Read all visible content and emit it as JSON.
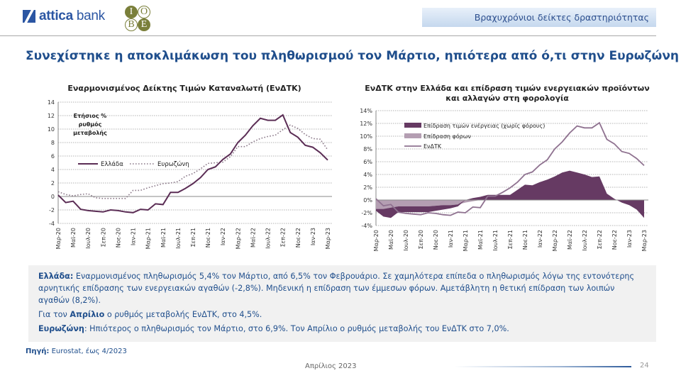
{
  "header": {
    "brand_bold": "attica",
    "brand_rest": " bank",
    "iobe_letters": [
      "I",
      "O",
      "B",
      "E"
    ],
    "section": "Βραχυχρόνιοι δείκτες δραστηριότητας"
  },
  "headline": "Συνεχίστηκε η αποκλιμάκωση του πληθωρισμού τον Μάρτιο, ηπιότερα από ό,τι στην Ευρωζώνη",
  "colors": {
    "greece": "#5b2d55",
    "eurozone": "#8c7a8a",
    "energy": "#663a63",
    "taxes": "#b49eb2",
    "hicp": "#8f7290",
    "text_blue": "#1f4e8c"
  },
  "chart_data": [
    {
      "type": "line",
      "title": "Εναρμονισμένος Δείκτης Τιμών Καταναλωτή (ΕνΔΤΚ)",
      "annotation": [
        "Ετήσιος %",
        "ρυθμός",
        "μεταβολής"
      ],
      "ylim": [
        -4,
        14
      ],
      "yticks": [
        "-4",
        "-2",
        "0",
        "2",
        "4",
        "6",
        "8",
        "10",
        "12",
        "14"
      ],
      "grid": true,
      "legend": "middle-left",
      "x_tick_labels": [
        "Μαρ-20",
        "Μαϊ-20",
        "Ιουλ-20",
        "Σεπ-20",
        "Νοε-20",
        "Ιαν-21",
        "Μαρ-21",
        "Μαϊ-21",
        "Ιουλ-21",
        "Σεπ-21",
        "Νοε-21",
        "Ιαν-22",
        "Μαρ-22",
        "Μαϊ-22",
        "Ιουλ-22",
        "Σεπ-22",
        "Νοε-22",
        "Ιαν-23",
        "Μαρ-23"
      ],
      "series": [
        {
          "name": "Ελλάδα",
          "style": "solid",
          "values": [
            0.2,
            -0.9,
            -0.7,
            -1.9,
            -2.1,
            -2.2,
            -2.3,
            -2.0,
            -2.1,
            -2.3,
            -2.4,
            -1.9,
            -2.0,
            -1.1,
            -1.2,
            0.6,
            0.6,
            1.2,
            1.9,
            2.8,
            4.0,
            4.4,
            5.5,
            6.3,
            8.0,
            9.1,
            10.5,
            11.6,
            11.3,
            11.3,
            12.1,
            9.5,
            8.8,
            7.6,
            7.3,
            6.5,
            5.4
          ]
        },
        {
          "name": "Ευρωζώνη",
          "style": "dotted",
          "values": [
            0.7,
            0.3,
            0.1,
            0.3,
            0.4,
            -0.2,
            -0.3,
            -0.3,
            -0.3,
            -0.3,
            0.9,
            0.9,
            1.3,
            1.6,
            1.9,
            2.0,
            2.2,
            3.0,
            3.4,
            4.1,
            4.9,
            5.0,
            5.1,
            5.9,
            7.4,
            7.4,
            8.1,
            8.6,
            8.9,
            9.1,
            9.9,
            10.6,
            10.1,
            9.2,
            8.6,
            8.5,
            6.9
          ]
        }
      ]
    },
    {
      "type": "area",
      "title": "ΕνΔΤΚ στην Ελλάδα και επίδραση τιμών ενεργειακών προϊόντων και αλλαγών στη φορολογία",
      "title_lines": [
        "ΕνΔΤΚ στην Ελλάδα και επίδραση τιμών ενεργειακών προϊόντων",
        "και αλλαγών στη φορολογία"
      ],
      "ylim": [
        -4,
        14
      ],
      "yticks": [
        "-4%",
        "-2%",
        "0%",
        "2%",
        "4%",
        "6%",
        "8%",
        "10%",
        "12%",
        "14%"
      ],
      "grid": true,
      "legend": "top-left",
      "x_tick_labels": [
        "Μαρ-20",
        "Μαϊ-20",
        "Ιουλ-20",
        "Σεπ-20",
        "Νοε-20",
        "Ιαν-21",
        "Μαρ-21",
        "Μαϊ-21",
        "Ιουλ-21",
        "Σεπ-21",
        "Νοε-21",
        "Ιαν-22",
        "Μαρ-22",
        "Μαϊ-22",
        "Ιουλ-22",
        "Σεπ-22",
        "Νοε-22",
        "Ιαν-23",
        "Μαρ-23"
      ],
      "series": [
        {
          "name": "Επίδραση τιμών ενέργειας (χωρίς φόρους)",
          "kind": "area",
          "values": [
            -0.3,
            -1.2,
            -1.6,
            -0.9,
            -0.9,
            -0.9,
            -0.9,
            -0.9,
            -0.8,
            -0.7,
            -0.5,
            -0.3,
            0.0,
            0.3,
            0.5,
            0.8,
            0.8,
            0.8,
            0.8,
            1.6,
            2.4,
            2.3,
            2.8,
            3.2,
            3.7,
            4.3,
            4.6,
            4.3,
            4.0,
            3.6,
            3.7,
            1.0,
            0.2,
            -0.4,
            -0.8,
            -1.5,
            -2.8
          ]
        },
        {
          "name": "Επίδραση φόρων",
          "kind": "area",
          "values": [
            -1.4,
            -1.4,
            -1.2,
            -1.0,
            -1.0,
            -1.0,
            -1.0,
            -1.0,
            -0.9,
            -0.8,
            -0.8,
            -0.7,
            -0.4,
            -0.2,
            0.0,
            0.0,
            0.0,
            0.0,
            0.0,
            0.0,
            0.0,
            0.0,
            0.0,
            0.0,
            0.0,
            0.0,
            0.0,
            0.0,
            0.0,
            0.0,
            0.0,
            0.0,
            0.0,
            0.0,
            0.0,
            0.0,
            0.0
          ]
        },
        {
          "name": "ΕνΔΤΚ",
          "kind": "line",
          "values": [
            0.2,
            -0.9,
            -0.7,
            -1.9,
            -2.1,
            -2.2,
            -2.3,
            -2.0,
            -2.1,
            -2.3,
            -2.4,
            -1.9,
            -2.0,
            -1.1,
            -1.2,
            0.6,
            0.6,
            1.2,
            1.9,
            2.8,
            4.0,
            4.4,
            5.5,
            6.3,
            8.0,
            9.1,
            10.5,
            11.6,
            11.3,
            11.3,
            12.1,
            9.5,
            8.8,
            7.6,
            7.3,
            6.5,
            5.4
          ]
        }
      ]
    }
  ],
  "commentary": {
    "greece_label": "Ελλάδα:",
    "greece_text": " Εναρμονισμένος πληθωρισμός 5,4% τον Μάρτιο, από 6,5% τον Φεβρουάριο. Σε χαμηλότερα επίπεδα ο πληθωρισμός λόγω της εντονότερης αρνητικής επίδρασης των ενεργειακών αγαθών (-2,8%). Μηδενική η επίδραση των έμμεσων φόρων. Αμετάβλητη η θετική επίδραση των λοιπών αγαθών (8,2%).",
    "april_pre": "Για τον ",
    "april_bold": "Απρίλιο",
    "april_post": " ο ρυθμός μεταβολής ΕνΔΤΚ, στο 4,5%.",
    "euro_label": "Ευρωζώνη",
    "euro_text": ": Ηπιότερος ο πληθωρισμός τον Μάρτιο, στο 6,9%. Τον Απρίλιο ο ρυθμός μεταβολής του ΕνΔΤΚ στο 7,0%."
  },
  "source": {
    "label": "Πηγή:",
    "text": " Eurostat, έως 4/2023"
  },
  "footer": {
    "date": "Απρίλιος 2023",
    "page": "24"
  }
}
